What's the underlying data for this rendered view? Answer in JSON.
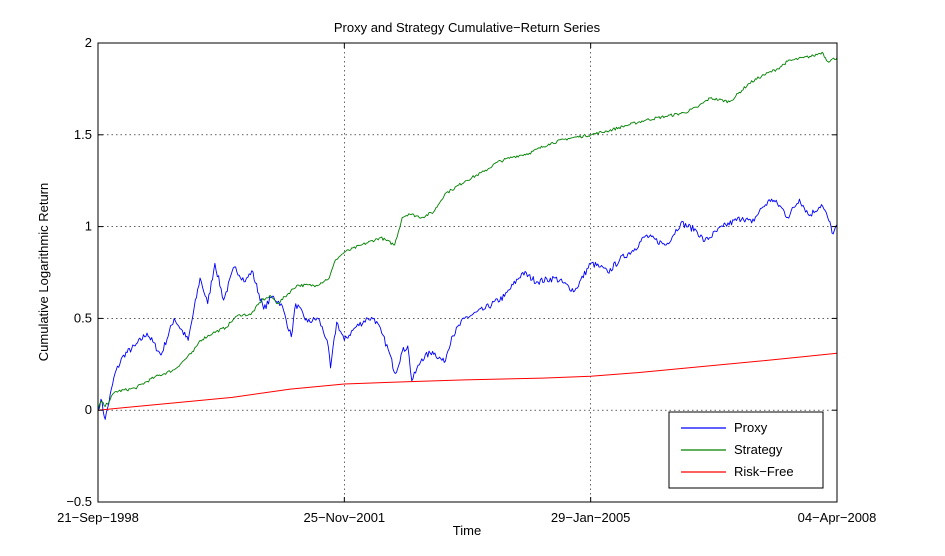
{
  "chart_data": {
    "type": "line",
    "title": "Proxy and Strategy Cumulative−Return Series",
    "xlabel": "Time",
    "ylabel": "Cumulative Logarithmic Return",
    "x_ticks": [
      "21−Sep−1998",
      "25−Nov−2001",
      "29−Jan−2005",
      "04−Apr−2008"
    ],
    "x_range": [
      "1998-09-21",
      "2008-04-04"
    ],
    "ylim": [
      -0.5,
      2
    ],
    "y_ticks": [
      -0.5,
      0,
      0.5,
      1,
      1.5,
      2
    ],
    "y_tick_labels": [
      "−0.5",
      "0",
      "0.5",
      "1",
      "1.5",
      "2"
    ],
    "grid": true,
    "legend_position": "bottom-right",
    "series": [
      {
        "name": "Proxy",
        "color": "#0000ff",
        "x": [
          "1998-09-21",
          "1998-10-05",
          "1998-10-25",
          "1998-12-10",
          "1999-01-20",
          "1999-03-15",
          "1999-05-10",
          "1999-07-15",
          "1999-09-15",
          "1999-11-20",
          "2000-01-15",
          "2000-02-20",
          "2000-03-25",
          "2000-05-05",
          "2000-06-25",
          "2000-08-15",
          "2000-09-15",
          "2000-11-10",
          "2000-12-20",
          "2001-01-31",
          "2001-03-20",
          "2001-04-10",
          "2001-06-05",
          "2001-07-25",
          "2001-09-05",
          "2001-09-21",
          "2001-10-20",
          "2001-11-25",
          "2002-01-15",
          "2002-03-15",
          "2002-04-15",
          "2002-05-20",
          "2002-06-20",
          "2002-07-23",
          "2002-08-25",
          "2002-09-20",
          "2002-10-09",
          "2002-11-25",
          "2003-01-15",
          "2003-03-11",
          "2003-04-15",
          "2003-06-15",
          "2003-09-15",
          "2003-12-20",
          "2004-03-15",
          "2004-05-20",
          "2004-08-15",
          "2004-11-15",
          "2005-01-29",
          "2005-03-15",
          "2005-04-20",
          "2005-06-15",
          "2005-08-25",
          "2005-10-15",
          "2006-01-20",
          "2006-03-30",
          "2006-06-10",
          "2006-07-20",
          "2006-10-15",
          "2007-01-15",
          "2007-02-27",
          "2007-04-15",
          "2007-06-01",
          "2007-07-20",
          "2007-08-15",
          "2007-10-10",
          "2007-11-25",
          "2008-01-22",
          "2008-02-20",
          "2008-03-17",
          "2008-04-04"
        ],
        "values": [
          0.0,
          0.06,
          -0.05,
          0.2,
          0.3,
          0.35,
          0.42,
          0.3,
          0.5,
          0.38,
          0.72,
          0.58,
          0.8,
          0.6,
          0.78,
          0.7,
          0.76,
          0.55,
          0.62,
          0.58,
          0.4,
          0.58,
          0.48,
          0.5,
          0.38,
          0.23,
          0.48,
          0.38,
          0.45,
          0.5,
          0.5,
          0.42,
          0.33,
          0.2,
          0.32,
          0.35,
          0.16,
          0.28,
          0.32,
          0.26,
          0.4,
          0.5,
          0.55,
          0.62,
          0.75,
          0.7,
          0.72,
          0.65,
          0.8,
          0.78,
          0.75,
          0.82,
          0.88,
          0.95,
          0.9,
          1.02,
          0.98,
          0.92,
          1.0,
          1.05,
          1.02,
          1.1,
          1.15,
          1.1,
          1.05,
          1.15,
          1.06,
          1.12,
          1.05,
          0.96,
          1.01
        ]
      },
      {
        "name": "Strategy",
        "color": "#008000",
        "x": [
          "1998-09-21",
          "1998-10-05",
          "1998-10-25",
          "1998-12-10",
          "1999-03-15",
          "1999-06-15",
          "1999-09-15",
          "1999-12-15",
          "2000-01-15",
          "2000-03-15",
          "2000-05-15",
          "2000-06-25",
          "2000-07-20",
          "2000-09-10",
          "2000-11-01",
          "2000-12-15",
          "2001-01-15",
          "2001-04-15",
          "2001-07-15",
          "2001-09-15",
          "2001-10-15",
          "2001-11-25",
          "2002-02-15",
          "2002-05-15",
          "2002-07-20",
          "2002-08-25",
          "2002-09-25",
          "2002-11-25",
          "2003-01-20",
          "2003-03-15",
          "2003-04-15",
          "2003-06-20",
          "2003-09-15",
          "2003-11-15",
          "2004-01-30",
          "2004-04-15",
          "2004-07-15",
          "2004-10-15",
          "2005-01-29",
          "2005-04-15",
          "2005-07-15",
          "2005-10-15",
          "2006-01-15",
          "2006-04-15",
          "2006-06-15",
          "2006-08-15",
          "2006-11-15",
          "2007-02-15",
          "2007-04-15",
          "2007-06-30",
          "2007-08-15",
          "2007-10-30",
          "2007-12-15",
          "2008-01-25",
          "2008-02-20",
          "2008-04-04"
        ],
        "values": [
          0.0,
          0.05,
          0.02,
          0.1,
          0.12,
          0.18,
          0.22,
          0.32,
          0.38,
          0.42,
          0.45,
          0.5,
          0.52,
          0.52,
          0.6,
          0.62,
          0.58,
          0.68,
          0.68,
          0.72,
          0.82,
          0.86,
          0.9,
          0.94,
          0.9,
          1.05,
          1.07,
          1.05,
          1.08,
          1.18,
          1.2,
          1.25,
          1.3,
          1.35,
          1.38,
          1.4,
          1.45,
          1.48,
          1.5,
          1.52,
          1.55,
          1.58,
          1.6,
          1.62,
          1.65,
          1.7,
          1.68,
          1.78,
          1.82,
          1.86,
          1.9,
          1.92,
          1.93,
          1.95,
          1.9,
          1.92
        ]
      },
      {
        "name": "Risk−Free",
        "color": "#ff0000",
        "x": [
          "1998-09-21",
          "1999-06-15",
          "2000-06-15",
          "2001-03-15",
          "2001-11-25",
          "2002-09-15",
          "2003-06-15",
          "2004-06-15",
          "2005-01-29",
          "2005-09-15",
          "2006-06-15",
          "2007-03-15",
          "2007-10-15",
          "2008-04-04"
        ],
        "values": [
          0.0,
          0.03,
          0.07,
          0.115,
          0.143,
          0.155,
          0.165,
          0.175,
          0.185,
          0.205,
          0.235,
          0.265,
          0.29,
          0.31
        ]
      }
    ]
  }
}
